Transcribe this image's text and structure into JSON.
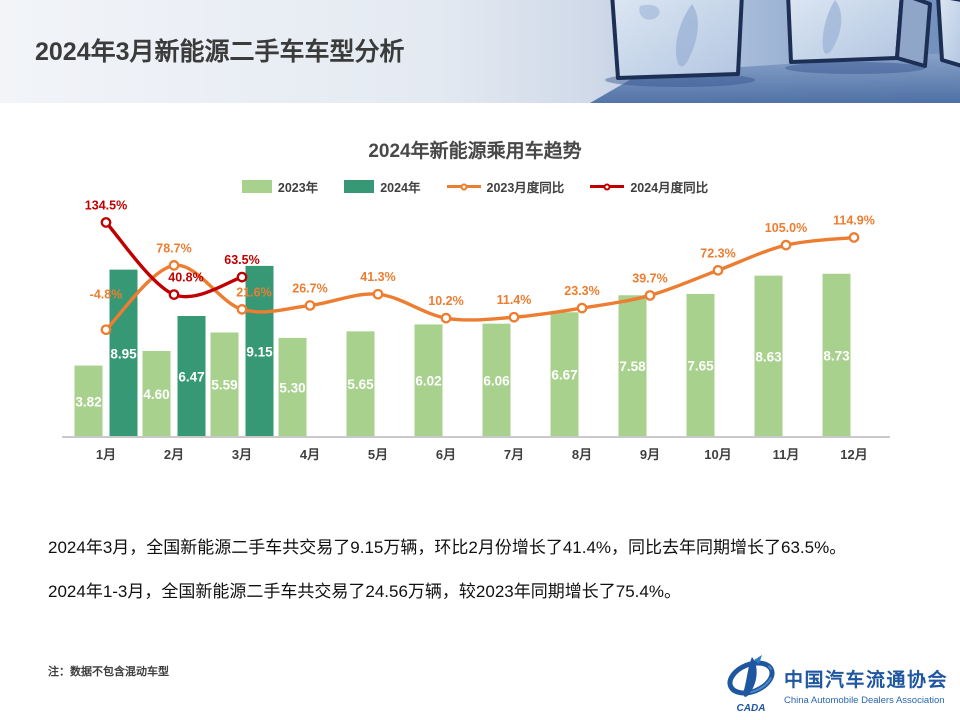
{
  "header": {
    "title": "2024年3月新能源二手车车型分析"
  },
  "chart_data": {
    "type": "bar+line",
    "title": "2024年新能源乘用车趋势",
    "legend_position": "top",
    "categories": [
      "1月",
      "2月",
      "3月",
      "4月",
      "5月",
      "6月",
      "7月",
      "8月",
      "9月",
      "10月",
      "11月",
      "12月"
    ],
    "series": [
      {
        "name": "2023年",
        "type": "bar",
        "color": "#A9D18E",
        "values": [
          3.82,
          4.6,
          5.59,
          5.3,
          5.65,
          6.02,
          6.06,
          6.67,
          7.58,
          7.65,
          8.63,
          8.73
        ]
      },
      {
        "name": "2024年",
        "type": "bar",
        "color": "#379876",
        "values": [
          8.95,
          6.47,
          9.15
        ]
      },
      {
        "name": "2023月度同比",
        "type": "line",
        "color": "#ED7D31",
        "values": [
          -4.8,
          78.7,
          21.6,
          26.7,
          41.3,
          10.2,
          11.4,
          23.3,
          39.7,
          72.3,
          105.0,
          114.9
        ]
      },
      {
        "name": "2024月度同比",
        "type": "line",
        "color": "#C00000",
        "values": [
          134.5,
          40.8,
          63.5
        ]
      }
    ],
    "axes": {
      "y_left": "hidden",
      "y_right": "hidden",
      "x_baseline": true,
      "gridlines": false
    },
    "bar_label_color": "#ffffff"
  },
  "body": {
    "paragraph1": "2024年3月，全国新能源二手车共交易了9.15万辆，环比2月份增长了41.4%，同比去年同期增长了63.5%。",
    "paragraph2": "2024年1-3月，全国新能源二手车共交易了24.56万辆，较2023年同期增长了75.4%。"
  },
  "footer": {
    "note": "注：数据不包含混动车型",
    "logo": {
      "org_cn": "中国汽车流通协会",
      "org_en": "China Automobile Dealers Association",
      "emblem_text": "CADA",
      "brand_color": "#1E56A0"
    }
  }
}
